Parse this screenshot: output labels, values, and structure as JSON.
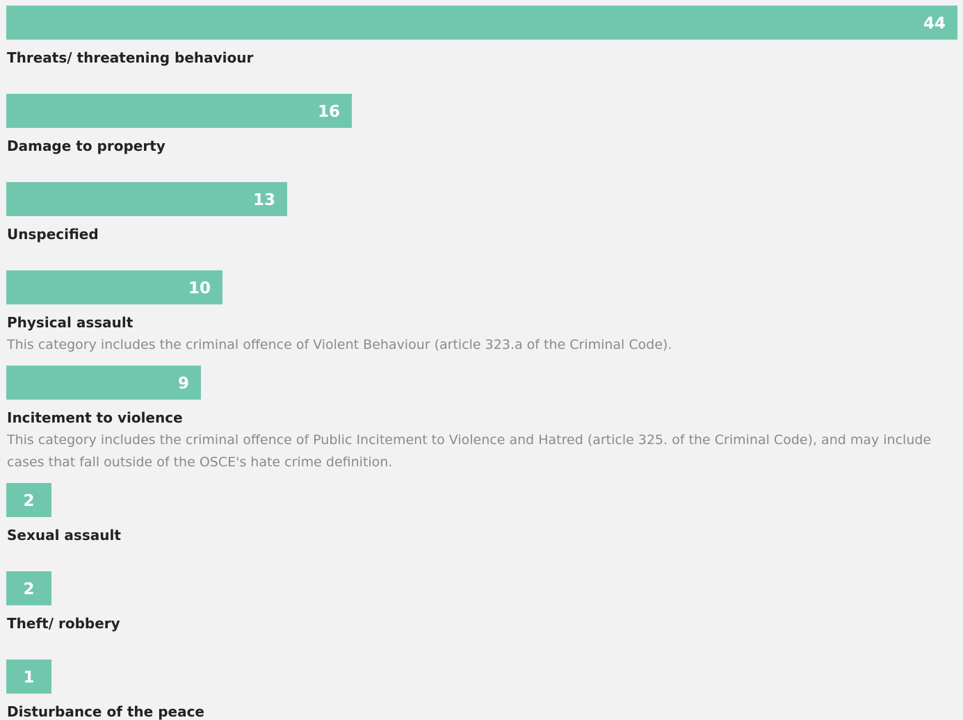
{
  "colors": {
    "bar": "#71c7ae",
    "background": "#f2f2f2",
    "label": "#222222",
    "note": "#8a8a8a"
  },
  "chart_data": {
    "type": "bar",
    "orientation": "horizontal",
    "categories": [
      "Threats/ threatening behaviour",
      "Damage to property",
      "Unspecified",
      "Physical assault",
      "Incitement to violence",
      "Sexual assault",
      "Theft/ robbery",
      "Disturbance of the peace"
    ],
    "values": [
      44,
      16,
      13,
      10,
      9,
      2,
      2,
      1
    ],
    "notes": [
      "",
      "",
      "",
      "This category includes the criminal offence of Violent Behaviour (article 323.a of the Criminal Code).",
      "This category includes the criminal offence of Public Incitement to Violence and Hatred (article 325. of the Criminal Code), and may include cases that fall outside of the OSCE's hate crime definition.",
      "",
      "",
      ""
    ],
    "xlim": [
      0,
      44
    ],
    "data_labels": true,
    "grid": false,
    "legend": false
  }
}
